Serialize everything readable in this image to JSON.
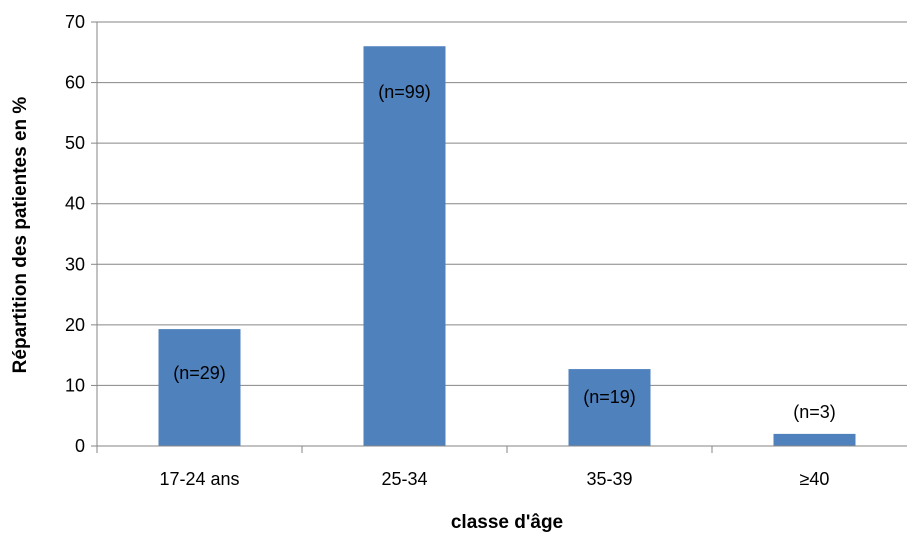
{
  "chart_data": {
    "type": "bar",
    "title": "",
    "xlabel": "classe d'âge",
    "ylabel": "Répartition des patientes en %",
    "categories": [
      "17-24 ans",
      "25-34",
      "35-39",
      "≥40"
    ],
    "values": [
      19.3,
      66,
      12.7,
      2
    ],
    "data_labels": [
      "(n=29)",
      "(n=99)",
      "(n=19)",
      "(n=3)"
    ],
    "ylim": [
      0,
      70
    ],
    "yticks": [
      0,
      10,
      20,
      30,
      40,
      50,
      60,
      70
    ],
    "grid": true,
    "legend": "none",
    "bar_color": "#4F81BD",
    "grid_color": "#868686",
    "axis_color": "#868686",
    "text_color": "#000000"
  }
}
